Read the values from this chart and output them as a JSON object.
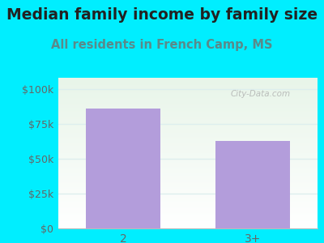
{
  "title": "Median family income by family size",
  "subtitle": "All residents in French Camp, MS",
  "categories": [
    "2",
    "3+"
  ],
  "values": [
    86000,
    63000
  ],
  "bar_color": "#b39ddb",
  "bg_color": "#00eeff",
  "title_fontsize": 13.5,
  "subtitle_fontsize": 10.5,
  "yticks": [
    0,
    25000,
    50000,
    75000,
    100000
  ],
  "ytick_labels": [
    "$0",
    "$25k",
    "$50k",
    "$75k",
    "$100k"
  ],
  "ylim": [
    0,
    108000
  ],
  "title_color": "#222222",
  "subtitle_color": "#5a8a8a",
  "tick_color": "#666666",
  "watermark": "City-Data.com",
  "grid_color": "#ddeeee"
}
